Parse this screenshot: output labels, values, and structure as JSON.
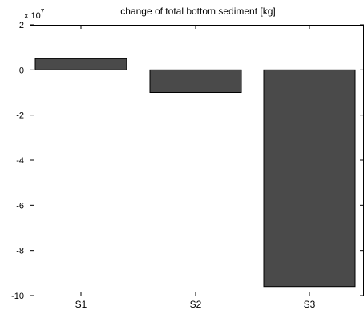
{
  "chart_data": {
    "type": "bar",
    "title": "change of total bottom sediment [kg]",
    "scale_label": "x 10",
    "scale_exponent": "7",
    "categories": [
      "S1",
      "S2",
      "S3"
    ],
    "values": [
      0.5,
      -1.0,
      -9.6
    ],
    "value_multiplier": 10000000,
    "ylim": [
      -10,
      2
    ],
    "yticks": [
      2,
      0,
      -2,
      -4,
      -6,
      -8,
      -10
    ],
    "ytick_labels": [
      "2",
      "0",
      "-2",
      "-4",
      "-6",
      "-8",
      "-10"
    ],
    "xlabel": "",
    "ylabel": "",
    "grid": false,
    "bar_color": "#4a4a4a",
    "axis_color": "#000000"
  }
}
